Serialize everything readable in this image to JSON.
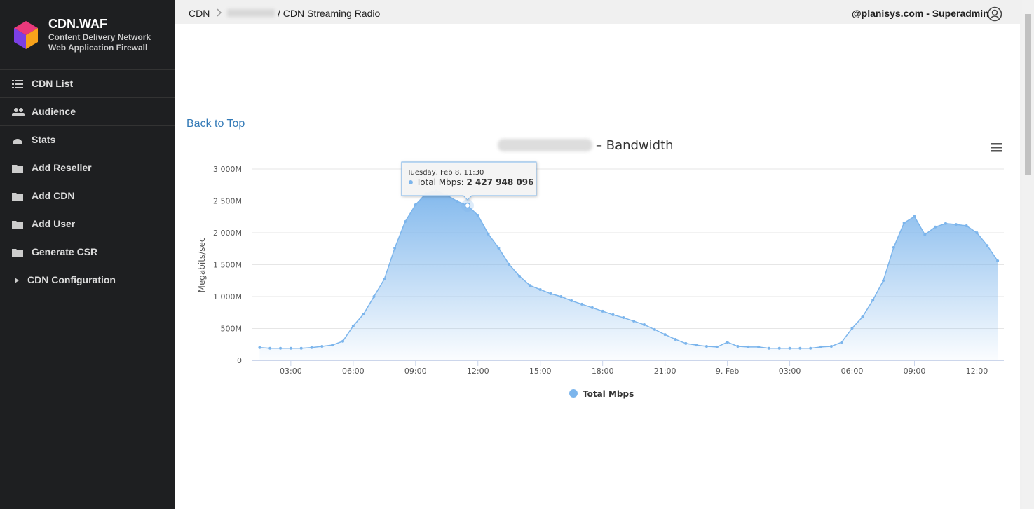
{
  "sidebar": {
    "brand": "CDN.WAF",
    "tagline": [
      "Content Delivery Network",
      "Web Application Firewall"
    ],
    "menu": [
      "CDN List",
      "Audience",
      "Stats",
      "Add Reseller",
      "Add CDN",
      "Add User",
      "Generate CSR"
    ],
    "config": "CDN Configuration"
  },
  "header": {
    "breadcrumb": [
      "CDN",
      "/ CDN Streaming Radio"
    ],
    "user": "@planisys.com - Superadmin"
  },
  "back_to_top": "Back to Top",
  "chart_data": {
    "type": "area",
    "title": "– Bandwidth",
    "ylabel": "Megabits/sec",
    "x": [
      1.5,
      2,
      2.5,
      3,
      3.5,
      4,
      4.5,
      5,
      5.5,
      6,
      6.5,
      7,
      7.5,
      8,
      8.5,
      9,
      9.5,
      10,
      10.5,
      11,
      11.5,
      12,
      12.5,
      13,
      13.5,
      14,
      14.5,
      15,
      15.5,
      16,
      16.5,
      17,
      17.5,
      18,
      18.5,
      19,
      19.5,
      20,
      20.5,
      21,
      21.5,
      22,
      22.5,
      23,
      23.5,
      24,
      24.5,
      25,
      25.5,
      26,
      26.5,
      27,
      27.5,
      28,
      28.5,
      29,
      29.5,
      30,
      30.5,
      31,
      31.5,
      32,
      32.5,
      33,
      33.5,
      34,
      34.5,
      35,
      35.5,
      36,
      36.5,
      37
    ],
    "xlim": [
      1.15,
      37.3
    ],
    "xticks": [
      {
        "value": 3,
        "label": "03:00"
      },
      {
        "value": 6,
        "label": "06:00"
      },
      {
        "value": 9,
        "label": "09:00"
      },
      {
        "value": 12,
        "label": "12:00"
      },
      {
        "value": 15,
        "label": "15:00"
      },
      {
        "value": 18,
        "label": "18:00"
      },
      {
        "value": 21,
        "label": "21:00"
      },
      {
        "value": 24,
        "label": "9. Feb"
      },
      {
        "value": 27,
        "label": "03:00"
      },
      {
        "value": 30,
        "label": "06:00"
      },
      {
        "value": 33,
        "label": "09:00"
      },
      {
        "value": 36,
        "label": "12:00"
      }
    ],
    "ylim": [
      0,
      3000000000
    ],
    "yticks": [
      0,
      {
        "value": 500000000,
        "label": "500M"
      },
      {
        "value": 1000000000,
        "label": "1 000M"
      },
      {
        "value": 1500000000,
        "label": "1 500M"
      },
      {
        "value": 2000000000,
        "label": "2 000M"
      },
      {
        "value": 2500000000,
        "label": "2 500M"
      },
      {
        "value": 3000000000,
        "label": "3 000M"
      }
    ],
    "grid": true,
    "series": [
      {
        "name": "Total Mbps",
        "color": "#7cb5ec",
        "values": [
          200000000,
          190000000,
          190000000,
          190000000,
          190000000,
          200000000,
          220000000,
          240000000,
          300000000,
          540000000,
          725000000,
          1000000000,
          1275000000,
          1760000000,
          2175000000,
          2440000000,
          2615000000,
          2660000000,
          2590000000,
          2495000000,
          2427948096,
          2275000000,
          1980000000,
          1760000000,
          1505000000,
          1320000000,
          1175000000,
          1110000000,
          1045000000,
          1000000000,
          935000000,
          880000000,
          825000000,
          770000000,
          715000000,
          670000000,
          615000000,
          560000000,
          485000000,
          405000000,
          330000000,
          265000000,
          240000000,
          220000000,
          210000000,
          285000000,
          220000000,
          210000000,
          210000000,
          190000000,
          190000000,
          190000000,
          190000000,
          190000000,
          210000000,
          220000000,
          285000000,
          505000000,
          680000000,
          945000000,
          1250000000,
          1770000000,
          2155000000,
          2255000000,
          1970000000,
          2090000000,
          2145000000,
          2130000000,
          2110000000,
          2000000000,
          1800000000,
          1560000000
        ]
      }
    ],
    "tooltip": {
      "title": "Tuesday, Feb 8, 11:30",
      "value": 2427948096,
      "value_label": "2 427 948 096"
    }
  }
}
